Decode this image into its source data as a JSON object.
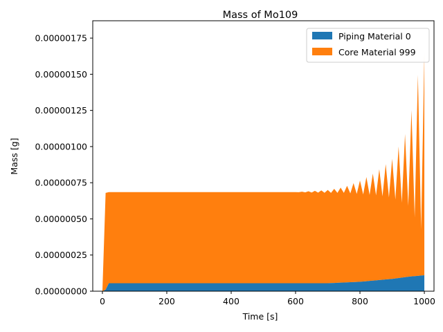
{
  "chart_data": {
    "type": "area",
    "stacked": true,
    "title": "Mass of Mo109",
    "xlabel": "Time [s]",
    "ylabel": "Mass [g]",
    "xlim": [
      -30,
      1030
    ],
    "ylim": [
      0,
      1.87e-06
    ],
    "x_ticks": [
      0,
      200,
      400,
      600,
      800,
      1000
    ],
    "y_ticks": [
      0,
      2.5e-07,
      5e-07,
      7.5e-07,
      1e-06,
      1.25e-06,
      1.5e-06,
      1.75e-06
    ],
    "x_tick_labels": [
      "0",
      "200",
      "400",
      "600",
      "800",
      "1000"
    ],
    "y_tick_labels": [
      "0.00000000",
      "0.00000025",
      "0.00000050",
      "0.00000075",
      "0.00000100",
      "0.00000125",
      "0.00000150",
      "0.00000175"
    ],
    "grid": false,
    "legend": {
      "position": "top-right",
      "entries": [
        "Piping Material 0",
        "Core Material 999"
      ]
    },
    "series_note": "",
    "series": [
      {
        "name": "Piping Material 0",
        "color": "#1f77b4",
        "x": [
          0,
          10,
          20,
          600,
          700,
          750,
          800,
          850,
          900,
          950,
          1000
        ],
        "values": [
          0,
          1e-08,
          5.5e-08,
          5.5e-08,
          5.5e-08,
          6e-08,
          6.5e-08,
          7.5e-08,
          8.5e-08,
          1e-07,
          1.1e-07
        ]
      },
      {
        "name": "Core Material 999",
        "color": "#ff7f0e",
        "x": [
          0,
          10,
          20,
          600,
          700,
          750,
          800,
          850,
          900,
          950,
          1000
        ],
        "values": [
          0,
          6.7e-07,
          6.3e-07,
          6.3e-07,
          6.3e-07,
          6.3e-07,
          6.3e-07,
          6.3e-07,
          6.3e-07,
          6.3e-07,
          6.3e-07
        ],
        "oscillation_amplitude_top": [
          0,
          0,
          0,
          0,
          1.5e-08,
          3e-08,
          7e-08,
          1.2e-07,
          2e-07,
          4e-07,
          1e-06
        ]
      }
    ]
  }
}
